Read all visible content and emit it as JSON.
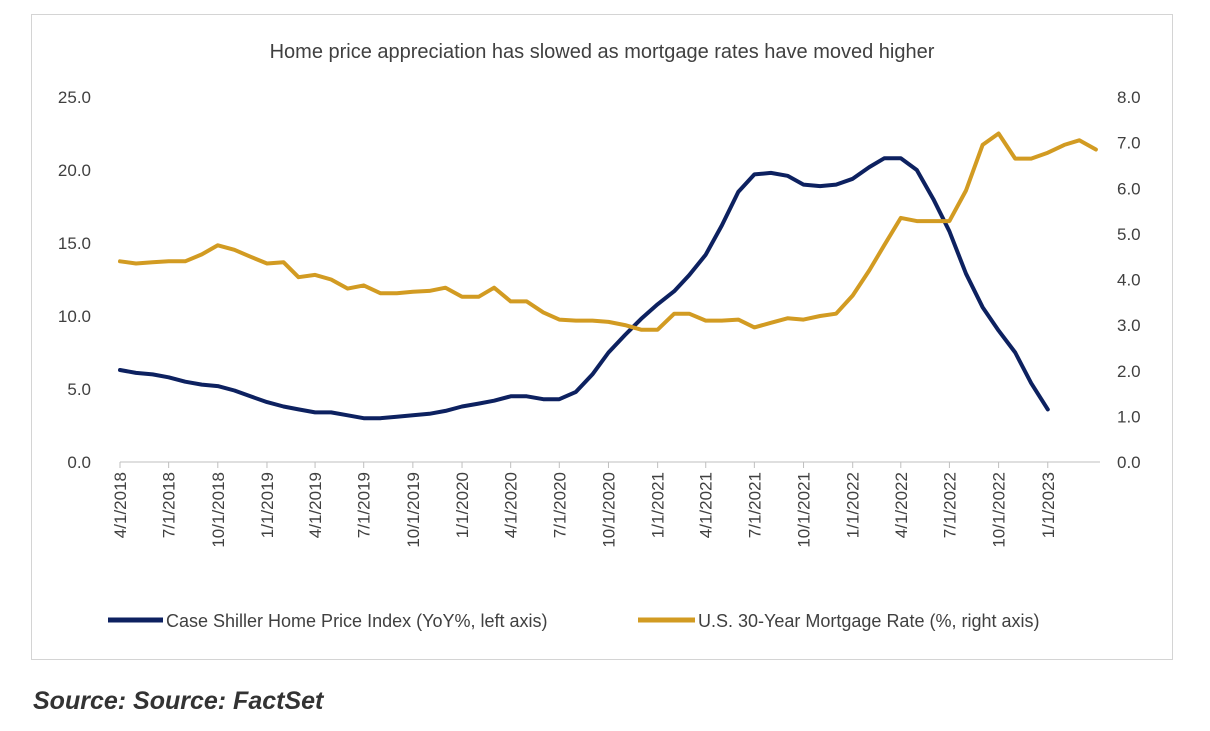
{
  "chart_data": {
    "type": "line",
    "title": "Home  price appreciation has slowed as mortgage rates have moved higher",
    "x_tick_labels": [
      "4/1/2018",
      "7/1/2018",
      "10/1/2018",
      "1/1/2019",
      "4/1/2019",
      "7/1/2019",
      "10/1/2019",
      "1/1/2020",
      "4/1/2020",
      "7/1/2020",
      "10/1/2020",
      "1/1/2021",
      "4/1/2021",
      "7/1/2021",
      "10/1/2021",
      "1/1/2022",
      "4/1/2022",
      "7/1/2022",
      "10/1/2022",
      "1/1/2023"
    ],
    "y_left": {
      "ticks": [
        "0.0",
        "5.0",
        "10.0",
        "15.0",
        "20.0",
        "25.0"
      ],
      "range": [
        0,
        25
      ]
    },
    "y_right": {
      "ticks": [
        "0.0",
        "1.0",
        "2.0",
        "3.0",
        "4.0",
        "5.0",
        "6.0",
        "7.0",
        "8.0"
      ],
      "range": [
        0,
        8
      ]
    },
    "grid": false,
    "legend_position": "bottom",
    "series": [
      {
        "name": "Case Shiller Home Price Index (YoY%, left axis)",
        "axis": "left",
        "color": "#0d2160",
        "x": [
          "2018-04-01",
          "2018-05-01",
          "2018-06-01",
          "2018-07-01",
          "2018-08-01",
          "2018-09-01",
          "2018-10-01",
          "2018-11-01",
          "2018-12-01",
          "2019-01-01",
          "2019-02-01",
          "2019-03-01",
          "2019-04-01",
          "2019-05-01",
          "2019-06-01",
          "2019-07-01",
          "2019-08-01",
          "2019-09-01",
          "2019-10-01",
          "2019-11-01",
          "2019-12-01",
          "2020-01-01",
          "2020-02-01",
          "2020-03-01",
          "2020-04-01",
          "2020-05-01",
          "2020-06-01",
          "2020-07-01",
          "2020-08-01",
          "2020-09-01",
          "2020-10-01",
          "2020-11-01",
          "2020-12-01",
          "2021-01-01",
          "2021-02-01",
          "2021-03-01",
          "2021-04-01",
          "2021-05-01",
          "2021-06-01",
          "2021-07-01",
          "2021-08-01",
          "2021-09-01",
          "2021-10-01",
          "2021-11-01",
          "2021-12-01",
          "2022-01-01",
          "2022-02-01",
          "2022-03-01",
          "2022-04-01",
          "2022-05-01",
          "2022-06-01",
          "2022-07-01",
          "2022-08-01",
          "2022-09-01",
          "2022-10-01",
          "2022-11-01",
          "2022-12-01",
          "2023-01-01",
          "2023-02-01"
        ],
        "values": [
          6.3,
          6.1,
          6.0,
          5.8,
          5.5,
          5.3,
          5.2,
          4.9,
          4.5,
          4.1,
          3.8,
          3.6,
          3.4,
          3.4,
          3.2,
          3.0,
          3.0,
          3.1,
          3.2,
          3.3,
          3.5,
          3.8,
          4.0,
          4.2,
          4.5,
          4.5,
          4.3,
          4.3,
          4.8,
          6.0,
          7.5,
          8.7,
          9.8,
          10.8,
          11.7,
          12.8,
          14.2,
          16.2,
          18.5,
          19.7,
          19.8,
          19.6,
          19.0,
          18.9,
          19.0,
          19.4,
          20.2,
          20.8,
          20.8,
          20.0,
          18.0,
          15.8,
          12.9,
          10.6,
          9.0,
          7.5,
          5.4,
          3.6,
          null
        ],
        "legend_label": "Case Shiller Home Price Index (YoY%, left axis)"
      },
      {
        "name": "U.S. 30-Year Mortgage Rate (%, right axis)",
        "axis": "right",
        "color": "#d29b22",
        "x": [
          "2018-04-01",
          "2018-05-01",
          "2018-06-01",
          "2018-07-01",
          "2018-08-01",
          "2018-09-01",
          "2018-10-01",
          "2018-11-01",
          "2018-12-01",
          "2019-01-01",
          "2019-02-01",
          "2019-03-01",
          "2019-04-01",
          "2019-05-01",
          "2019-06-01",
          "2019-07-01",
          "2019-08-01",
          "2019-09-01",
          "2019-10-01",
          "2019-11-01",
          "2019-12-01",
          "2020-01-01",
          "2020-02-01",
          "2020-03-01",
          "2020-04-01",
          "2020-05-01",
          "2020-06-01",
          "2020-07-01",
          "2020-08-01",
          "2020-09-01",
          "2020-10-01",
          "2020-11-01",
          "2020-12-01",
          "2021-01-01",
          "2021-02-01",
          "2021-03-01",
          "2021-04-01",
          "2021-05-01",
          "2021-06-01",
          "2021-07-01",
          "2021-08-01",
          "2021-09-01",
          "2021-10-01",
          "2021-11-01",
          "2021-12-01",
          "2022-01-01",
          "2022-02-01",
          "2022-03-01",
          "2022-04-01",
          "2022-05-01",
          "2022-06-01",
          "2022-07-01",
          "2022-08-01",
          "2022-09-01",
          "2022-10-01",
          "2022-11-01",
          "2022-12-01",
          "2023-01-01",
          "2023-02-01",
          "2023-03-01",
          "2023-04-01"
        ],
        "values": [
          4.4,
          4.35,
          4.38,
          4.4,
          4.4,
          4.55,
          4.75,
          4.65,
          4.5,
          4.35,
          4.38,
          4.05,
          4.1,
          4.0,
          3.8,
          3.87,
          3.7,
          3.7,
          3.73,
          3.75,
          3.82,
          3.62,
          3.62,
          3.82,
          3.52,
          3.52,
          3.28,
          3.12,
          3.1,
          3.1,
          3.07,
          3.0,
          2.9,
          2.9,
          3.25,
          3.25,
          3.1,
          3.1,
          3.12,
          2.95,
          3.05,
          3.15,
          3.12,
          3.2,
          3.25,
          3.65,
          4.2,
          4.75,
          5.35,
          5.28,
          5.28,
          5.28,
          5.95,
          6.95,
          7.2,
          6.65,
          6.65,
          6.78,
          6.95,
          7.05,
          6.85
        ],
        "legend_label": "U.S. 30-Year Mortgage Rate (%, right axis)"
      }
    ]
  },
  "source_note": "Source: Source: FactSet"
}
